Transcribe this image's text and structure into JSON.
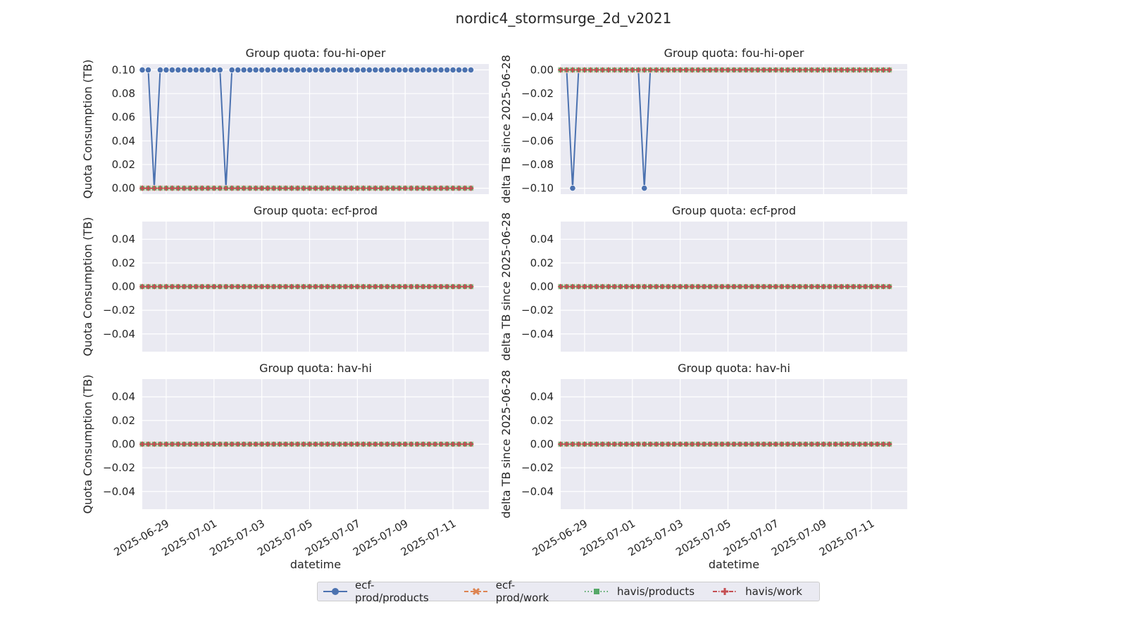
{
  "figure_title": "nordic4_stormsurge_2d_v2021",
  "legend": [
    {
      "label": "ecf-prod/products",
      "color": "#4c72b0",
      "marker": "circle",
      "dash": "solid"
    },
    {
      "label": "ecf-prod/work",
      "color": "#dd8452",
      "marker": "x-filled",
      "dash": "dashed"
    },
    {
      "label": "havis/products",
      "color": "#55a868",
      "marker": "square",
      "dash": "dotted"
    },
    {
      "label": "havis/work",
      "color": "#c44e52",
      "marker": "plus",
      "dash": "dashdot"
    }
  ],
  "colors": {
    "plot_bg": "#eaeaf2",
    "grid": "#ffffff"
  },
  "x_ticks": [
    "2025-06-29",
    "2025-07-01",
    "2025-07-03",
    "2025-07-05",
    "2025-07-07",
    "2025-07-09",
    "2025-07-11"
  ],
  "xlabel": "datetime",
  "chart_data": [
    {
      "type": "line",
      "title": "Group quota: fou-hi-oper",
      "ylabel": "Quota Consumption (TB)",
      "ylim": [
        -0.005,
        0.105
      ],
      "yticks": [
        "0.10",
        "0.08",
        "0.06",
        "0.04",
        "0.02",
        "0.00"
      ],
      "ytick_values": [
        0.1,
        0.08,
        0.06,
        0.04,
        0.02,
        0.0
      ],
      "x_range": [
        "2025-06-28T00:00",
        "2025-07-12T12:00"
      ],
      "x_start": "2025-06-28T00:00",
      "x_end": "2025-07-11T18:00",
      "points_per_series": 56,
      "series": [
        {
          "name": "ecf-prod/products",
          "baseline": 0.1,
          "dips": [
            {
              "x": "2025-06-28T12:00",
              "y": 0.0
            },
            {
              "x": "2025-07-01T12:00",
              "y": 0.0
            }
          ]
        },
        {
          "name": "ecf-prod/work",
          "baseline": 0.0,
          "dips": []
        },
        {
          "name": "havis/products",
          "baseline": 0.0,
          "dips": []
        },
        {
          "name": "havis/work",
          "baseline": 0.0,
          "dips": []
        }
      ]
    },
    {
      "type": "line",
      "title": "Group quota: fou-hi-oper",
      "ylabel": "delta TB since 2025-06-28",
      "ylim": [
        -0.105,
        0.005
      ],
      "yticks": [
        "0.00",
        "−0.02",
        "−0.04",
        "−0.06",
        "−0.08",
        "−0.10"
      ],
      "ytick_values": [
        0.0,
        -0.02,
        -0.04,
        -0.06,
        -0.08,
        -0.1
      ],
      "x_range": [
        "2025-06-28T00:00",
        "2025-07-12T12:00"
      ],
      "x_start": "2025-06-28T00:00",
      "x_end": "2025-07-11T18:00",
      "points_per_series": 56,
      "series": [
        {
          "name": "ecf-prod/products",
          "baseline": 0.0,
          "dips": [
            {
              "x": "2025-06-28T12:00",
              "y": -0.1
            },
            {
              "x": "2025-07-01T12:00",
              "y": -0.1
            }
          ]
        },
        {
          "name": "ecf-prod/work",
          "baseline": 0.0,
          "dips": []
        },
        {
          "name": "havis/products",
          "baseline": 0.0,
          "dips": []
        },
        {
          "name": "havis/work",
          "baseline": 0.0,
          "dips": []
        }
      ]
    },
    {
      "type": "line",
      "title": "Group quota: ecf-prod",
      "ylabel": "Quota Consumption (TB)",
      "ylim": [
        -0.055,
        0.055
      ],
      "yticks": [
        "0.04",
        "0.02",
        "0.00",
        "−0.02",
        "−0.04"
      ],
      "ytick_values": [
        0.04,
        0.02,
        0.0,
        -0.02,
        -0.04
      ],
      "x_range": [
        "2025-06-28T00:00",
        "2025-07-12T12:00"
      ],
      "x_start": "2025-06-28T00:00",
      "x_end": "2025-07-11T18:00",
      "points_per_series": 56,
      "series": [
        {
          "name": "ecf-prod/products",
          "baseline": 0.0,
          "dips": []
        },
        {
          "name": "ecf-prod/work",
          "baseline": 0.0,
          "dips": []
        },
        {
          "name": "havis/products",
          "baseline": 0.0,
          "dips": []
        },
        {
          "name": "havis/work",
          "baseline": 0.0,
          "dips": []
        }
      ]
    },
    {
      "type": "line",
      "title": "Group quota: ecf-prod",
      "ylabel": "delta TB since 2025-06-28",
      "ylim": [
        -0.055,
        0.055
      ],
      "yticks": [
        "0.04",
        "0.02",
        "0.00",
        "−0.02",
        "−0.04"
      ],
      "ytick_values": [
        0.04,
        0.02,
        0.0,
        -0.02,
        -0.04
      ],
      "x_range": [
        "2025-06-28T00:00",
        "2025-07-12T12:00"
      ],
      "x_start": "2025-06-28T00:00",
      "x_end": "2025-07-11T18:00",
      "points_per_series": 56,
      "series": [
        {
          "name": "ecf-prod/products",
          "baseline": 0.0,
          "dips": []
        },
        {
          "name": "ecf-prod/work",
          "baseline": 0.0,
          "dips": []
        },
        {
          "name": "havis/products",
          "baseline": 0.0,
          "dips": []
        },
        {
          "name": "havis/work",
          "baseline": 0.0,
          "dips": []
        }
      ]
    },
    {
      "type": "line",
      "title": "Group quota: hav-hi",
      "ylabel": "Quota Consumption (TB)",
      "ylim": [
        -0.055,
        0.055
      ],
      "yticks": [
        "0.04",
        "0.02",
        "0.00",
        "−0.02",
        "−0.04"
      ],
      "ytick_values": [
        0.04,
        0.02,
        0.0,
        -0.02,
        -0.04
      ],
      "x_range": [
        "2025-06-28T00:00",
        "2025-07-12T12:00"
      ],
      "x_start": "2025-06-28T00:00",
      "x_end": "2025-07-11T18:00",
      "points_per_series": 56,
      "series": [
        {
          "name": "ecf-prod/products",
          "baseline": 0.0,
          "dips": []
        },
        {
          "name": "ecf-prod/work",
          "baseline": 0.0,
          "dips": []
        },
        {
          "name": "havis/products",
          "baseline": 0.0,
          "dips": []
        },
        {
          "name": "havis/work",
          "baseline": 0.0,
          "dips": []
        }
      ]
    },
    {
      "type": "line",
      "title": "Group quota: hav-hi",
      "ylabel": "delta TB since 2025-06-28",
      "ylim": [
        -0.055,
        0.055
      ],
      "yticks": [
        "0.04",
        "0.02",
        "0.00",
        "−0.02",
        "−0.04"
      ],
      "ytick_values": [
        0.04,
        0.02,
        0.0,
        -0.02,
        -0.04
      ],
      "x_range": [
        "2025-06-28T00:00",
        "2025-07-12T12:00"
      ],
      "x_start": "2025-06-28T00:00",
      "x_end": "2025-07-11T18:00",
      "points_per_series": 56,
      "series": [
        {
          "name": "ecf-prod/products",
          "baseline": 0.0,
          "dips": []
        },
        {
          "name": "ecf-prod/work",
          "baseline": 0.0,
          "dips": []
        },
        {
          "name": "havis/products",
          "baseline": 0.0,
          "dips": []
        },
        {
          "name": "havis/work",
          "baseline": 0.0,
          "dips": []
        }
      ]
    }
  ]
}
